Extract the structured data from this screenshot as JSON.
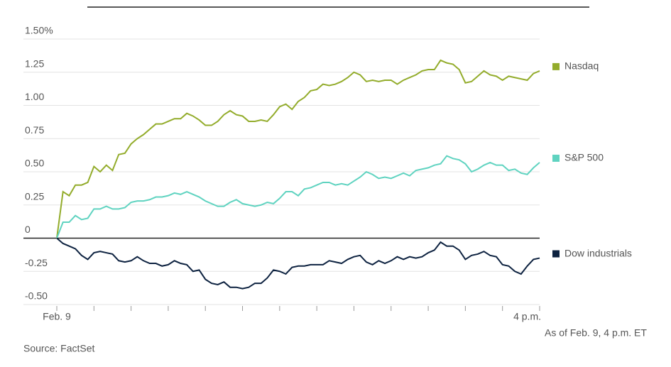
{
  "chart_data": {
    "type": "line",
    "categories": [
      "Feb. 9",
      null,
      null,
      null,
      null,
      null,
      null,
      null,
      null,
      null,
      null,
      null,
      null,
      null,
      null,
      null,
      null,
      null,
      null,
      null,
      null,
      null,
      null,
      null,
      null,
      null,
      null,
      null,
      null,
      null,
      null,
      null,
      null,
      null,
      null,
      null,
      null,
      null,
      null,
      null,
      null,
      null,
      null,
      null,
      null,
      null,
      null,
      null,
      null,
      null,
      null,
      null,
      null,
      null,
      null,
      null,
      null,
      null,
      null,
      null,
      null,
      null,
      null,
      null,
      null,
      null,
      null,
      null,
      null,
      null,
      null,
      null,
      null,
      null,
      null,
      null,
      null,
      null,
      "4 p.m."
    ],
    "series": [
      {
        "name": "Nasdaq",
        "color": "#93ac2b",
        "values": [
          0,
          0.35,
          0.32,
          0.4,
          0.4,
          0.42,
          0.54,
          0.5,
          0.55,
          0.51,
          0.63,
          0.64,
          0.71,
          0.75,
          0.78,
          0.82,
          0.86,
          0.86,
          0.88,
          0.9,
          0.9,
          0.94,
          0.92,
          0.89,
          0.85,
          0.85,
          0.88,
          0.93,
          0.96,
          0.93,
          0.92,
          0.88,
          0.88,
          0.89,
          0.88,
          0.93,
          0.99,
          1.01,
          0.97,
          1.03,
          1.06,
          1.11,
          1.12,
          1.16,
          1.15,
          1.16,
          1.18,
          1.21,
          1.25,
          1.23,
          1.18,
          1.19,
          1.18,
          1.19,
          1.19,
          1.16,
          1.19,
          1.21,
          1.23,
          1.26,
          1.27,
          1.27,
          1.34,
          1.32,
          1.31,
          1.27,
          1.17,
          1.18,
          1.22,
          1.26,
          1.23,
          1.22,
          1.19,
          1.22,
          1.21,
          1.2,
          1.19,
          1.24,
          1.26
        ]
      },
      {
        "name": "S&P 500",
        "color": "#5fd3c0",
        "values": [
          0,
          0.12,
          0.12,
          0.17,
          0.14,
          0.15,
          0.22,
          0.22,
          0.24,
          0.22,
          0.22,
          0.23,
          0.27,
          0.28,
          0.28,
          0.29,
          0.31,
          0.31,
          0.32,
          0.34,
          0.33,
          0.35,
          0.33,
          0.31,
          0.28,
          0.26,
          0.24,
          0.24,
          0.27,
          0.29,
          0.26,
          0.25,
          0.24,
          0.25,
          0.27,
          0.26,
          0.3,
          0.35,
          0.35,
          0.32,
          0.37,
          0.38,
          0.4,
          0.42,
          0.42,
          0.4,
          0.41,
          0.4,
          0.43,
          0.46,
          0.5,
          0.48,
          0.45,
          0.46,
          0.45,
          0.47,
          0.49,
          0.47,
          0.51,
          0.52,
          0.53,
          0.55,
          0.56,
          0.62,
          0.6,
          0.59,
          0.56,
          0.5,
          0.52,
          0.55,
          0.57,
          0.55,
          0.55,
          0.51,
          0.52,
          0.49,
          0.48,
          0.53,
          0.57
        ]
      },
      {
        "name": "Dow industrials",
        "color": "#0d2240",
        "values": [
          0,
          -0.04,
          -0.06,
          -0.08,
          -0.13,
          -0.16,
          -0.11,
          -0.1,
          -0.11,
          -0.12,
          -0.17,
          -0.18,
          -0.17,
          -0.14,
          -0.17,
          -0.19,
          -0.19,
          -0.21,
          -0.2,
          -0.17,
          -0.19,
          -0.2,
          -0.25,
          -0.24,
          -0.31,
          -0.34,
          -0.35,
          -0.33,
          -0.37,
          -0.37,
          -0.38,
          -0.37,
          -0.34,
          -0.34,
          -0.3,
          -0.24,
          -0.25,
          -0.27,
          -0.22,
          -0.21,
          -0.21,
          -0.2,
          -0.2,
          -0.2,
          -0.17,
          -0.18,
          -0.19,
          -0.16,
          -0.14,
          -0.13,
          -0.18,
          -0.2,
          -0.17,
          -0.19,
          -0.17,
          -0.14,
          -0.16,
          -0.14,
          -0.15,
          -0.14,
          -0.11,
          -0.09,
          -0.03,
          -0.06,
          -0.06,
          -0.09,
          -0.16,
          -0.13,
          -0.12,
          -0.1,
          -0.13,
          -0.14,
          -0.2,
          -0.21,
          -0.25,
          -0.27,
          -0.21,
          -0.16,
          -0.15
        ]
      }
    ],
    "ylim": [
      -0.5,
      1.5
    ],
    "yticks": [
      {
        "value": 1.5,
        "label": "1.50%"
      },
      1.25,
      {
        "value": 1.0,
        "label": "1.00"
      },
      0.75,
      {
        "value": 0.5,
        "label": "0.50"
      },
      0.25,
      0,
      -0.25,
      {
        "value": -0.5,
        "label": "-0.50"
      }
    ],
    "grid": true,
    "note": "As of Feb. 9, 4 p.m. ET",
    "source": "Source: FactSet"
  }
}
